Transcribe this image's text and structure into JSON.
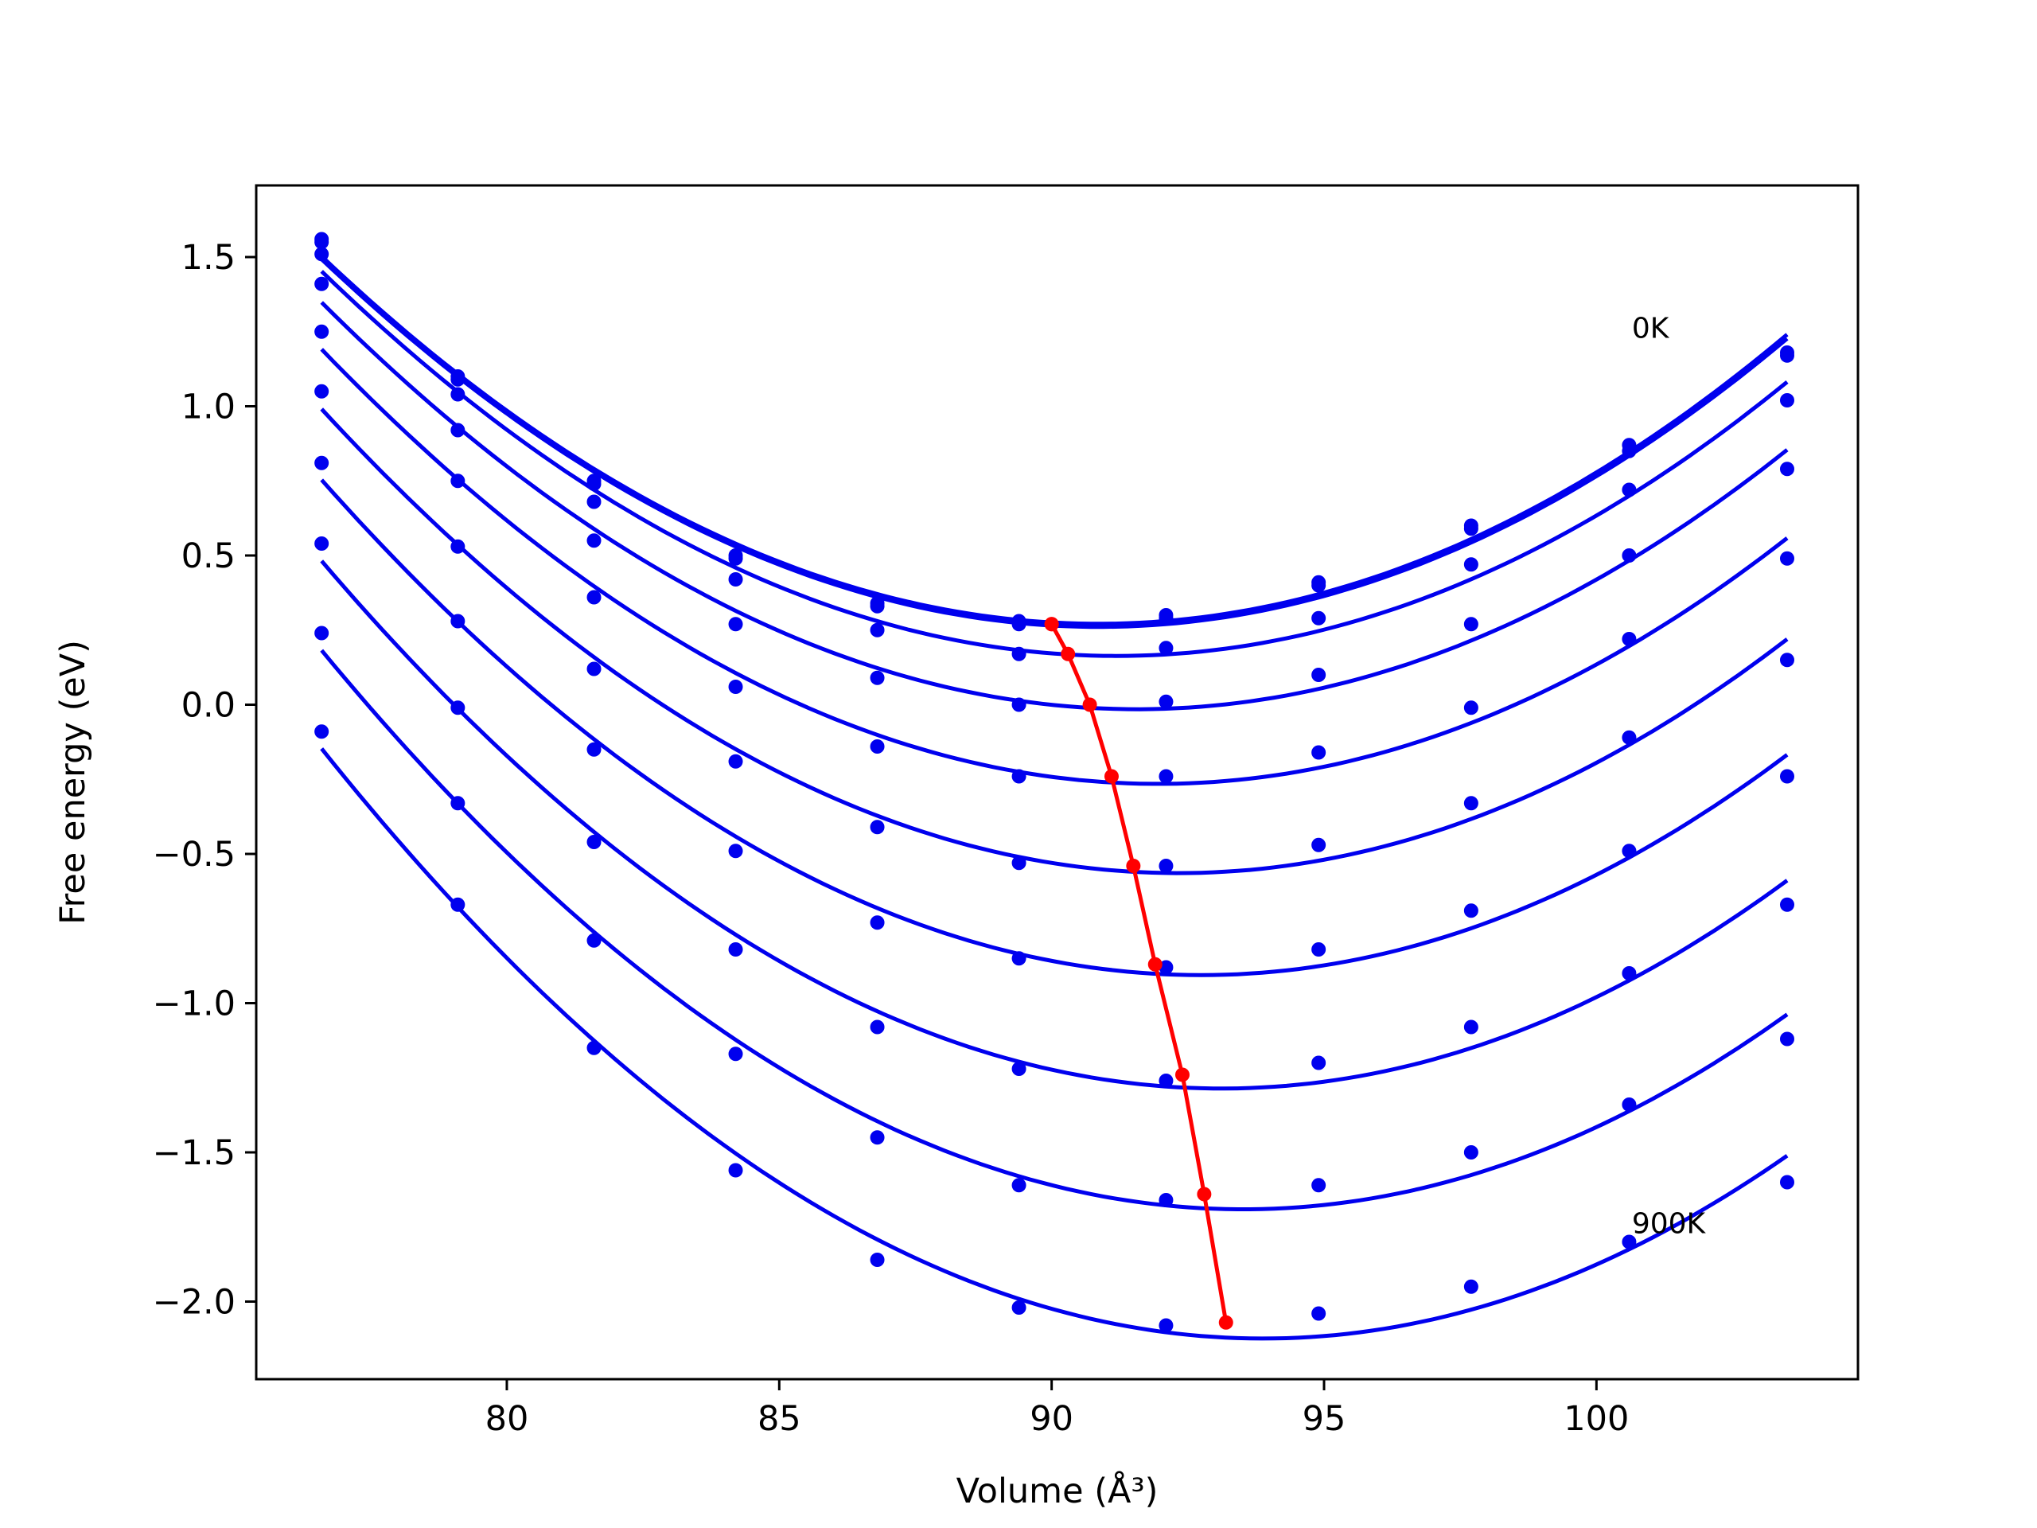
{
  "chart_data": {
    "type": "line",
    "xlabel": "Volume (Å³)",
    "ylabel": "Free energy (eV)",
    "xlim": [
      75.4,
      104.8
    ],
    "ylim": [
      -2.26,
      1.74
    ],
    "xticks": [
      80,
      85,
      90,
      95,
      100
    ],
    "yticks": [
      1.5,
      1.0,
      0.5,
      0.0,
      -0.5,
      -1.0,
      -1.5,
      -2.0
    ],
    "xtick_labels": [
      "80",
      "85",
      "90",
      "95",
      "100"
    ],
    "ytick_labels": [
      "1.5",
      "1.0",
      "0.5",
      "0.0",
      "−0.5",
      "−1.0",
      "−1.5",
      "−2.0"
    ],
    "grid": false,
    "curve_color": "#0000ee",
    "min_color": "#ff0000",
    "x": [
      76.6,
      79.1,
      81.6,
      84.2,
      86.8,
      89.4,
      92.1,
      94.9,
      97.7,
      100.6,
      103.5
    ],
    "series": [
      {
        "values": [
          1.56,
          1.1,
          0.75,
          0.5,
          0.34,
          0.28,
          0.3,
          0.41,
          0.6,
          0.87,
          1.18
        ],
        "min": [
          90.0,
          0.27
        ]
      },
      {
        "values": [
          1.55,
          1.09,
          0.74,
          0.49,
          0.33,
          0.27,
          0.29,
          0.4,
          0.59,
          0.85,
          1.17
        ],
        "min": [
          90.0,
          0.27
        ]
      },
      {
        "values": [
          1.51,
          1.04,
          0.68,
          0.42,
          0.25,
          0.17,
          0.19,
          0.29,
          0.47,
          0.72,
          1.02
        ],
        "min": [
          90.3,
          0.17
        ]
      },
      {
        "values": [
          1.41,
          0.92,
          0.55,
          0.27,
          0.09,
          0.0,
          0.01,
          0.1,
          0.27,
          0.5,
          0.79
        ],
        "min": [
          90.7,
          0.0
        ]
      },
      {
        "values": [
          1.25,
          0.75,
          0.36,
          0.06,
          -0.14,
          -0.24,
          -0.24,
          -0.16,
          -0.01,
          0.22,
          0.49
        ],
        "min": [
          91.1,
          -0.24
        ]
      },
      {
        "values": [
          1.05,
          0.53,
          0.12,
          -0.19,
          -0.41,
          -0.53,
          -0.54,
          -0.47,
          -0.33,
          -0.11,
          0.15
        ],
        "min": [
          91.5,
          -0.54
        ]
      },
      {
        "values": [
          0.81,
          0.28,
          -0.15,
          -0.49,
          -0.73,
          -0.85,
          -0.88,
          -0.82,
          -0.69,
          -0.49,
          -0.24
        ],
        "min": [
          91.9,
          -0.87
        ]
      },
      {
        "values": [
          0.54,
          -0.01,
          -0.46,
          -0.82,
          -1.08,
          -1.22,
          -1.26,
          -1.2,
          -1.08,
          -0.9,
          -0.67
        ],
        "min": [
          92.4,
          -1.24
        ]
      },
      {
        "values": [
          0.24,
          -0.33,
          -0.79,
          -1.17,
          -1.45,
          -1.61,
          -1.66,
          -1.61,
          -1.5,
          -1.34,
          -1.12
        ],
        "min": [
          92.8,
          -1.64
        ]
      },
      {
        "values": [
          -0.09,
          -0.67,
          -1.15,
          -1.56,
          -1.86,
          -2.02,
          -2.08,
          -2.04,
          -1.95,
          -1.8,
          -1.6
        ],
        "min": [
          93.2,
          -2.07
        ]
      }
    ],
    "annotations": [
      {
        "text": "0K",
        "x": 100.65,
        "y": 1.23
      },
      {
        "text": "900K",
        "x": 100.65,
        "y": -1.77
      }
    ]
  }
}
